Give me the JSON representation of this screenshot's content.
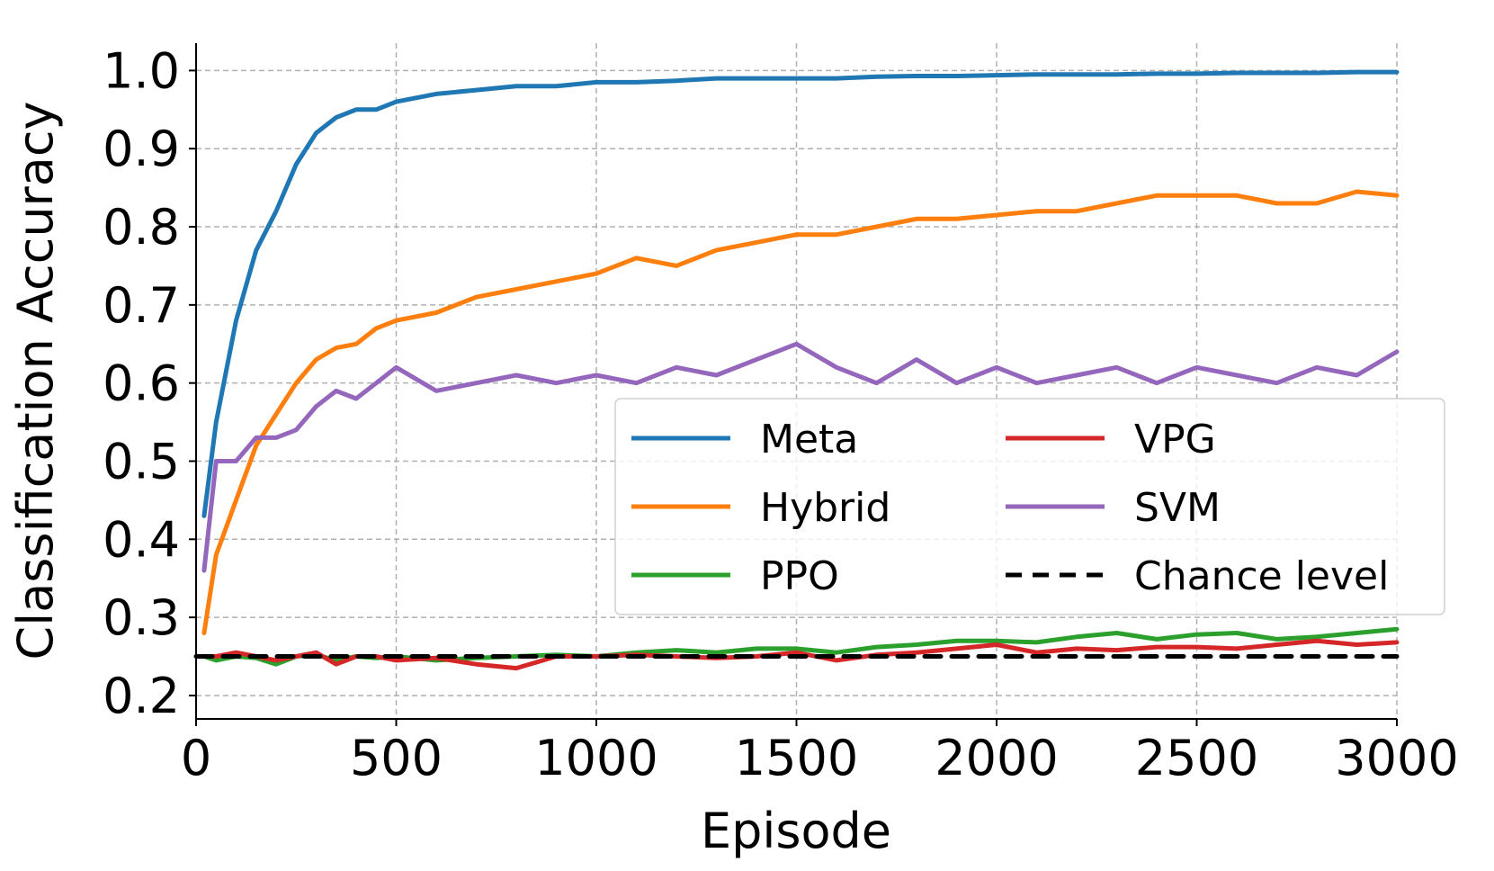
{
  "chart_data": {
    "type": "line",
    "title": "",
    "xlabel": "Episode",
    "ylabel": "Classification Accuracy",
    "xlim": [
      0,
      3000
    ],
    "ylim": [
      0.17,
      1.035
    ],
    "xticks": [
      0,
      500,
      1000,
      1500,
      2000,
      2500,
      3000
    ],
    "yticks": [
      0.2,
      0.3,
      0.4,
      0.5,
      0.6,
      0.7,
      0.8,
      0.9,
      1.0
    ],
    "xtick_labels": [
      "0",
      "500",
      "1000",
      "1500",
      "2000",
      "2500",
      "3000"
    ],
    "ytick_labels": [
      "0.2",
      "0.3",
      "0.4",
      "0.5",
      "0.6",
      "0.7",
      "0.8",
      "0.9",
      "1.0"
    ],
    "grid": true,
    "legend_position": "center-right",
    "x": [
      20,
      50,
      100,
      150,
      200,
      250,
      300,
      350,
      400,
      450,
      500,
      600,
      700,
      800,
      900,
      1000,
      1100,
      1200,
      1300,
      1400,
      1500,
      1600,
      1700,
      1800,
      1900,
      2000,
      2100,
      2200,
      2300,
      2400,
      2500,
      2600,
      2700,
      2800,
      2900,
      3000
    ],
    "series": [
      {
        "name": "Meta",
        "color": "#1f77b4",
        "dashed": false,
        "values": [
          0.43,
          0.55,
          0.68,
          0.77,
          0.82,
          0.88,
          0.92,
          0.94,
          0.95,
          0.95,
          0.96,
          0.97,
          0.975,
          0.98,
          0.98,
          0.985,
          0.985,
          0.987,
          0.99,
          0.99,
          0.99,
          0.99,
          0.992,
          0.993,
          0.993,
          0.994,
          0.995,
          0.995,
          0.995,
          0.996,
          0.996,
          0.997,
          0.997,
          0.997,
          0.998,
          0.998
        ]
      },
      {
        "name": "Hybrid",
        "color": "#ff7f0e",
        "dashed": false,
        "values": [
          0.28,
          0.38,
          0.45,
          0.52,
          0.56,
          0.6,
          0.63,
          0.645,
          0.65,
          0.67,
          0.68,
          0.69,
          0.71,
          0.72,
          0.73,
          0.74,
          0.76,
          0.75,
          0.77,
          0.78,
          0.79,
          0.79,
          0.8,
          0.81,
          0.81,
          0.815,
          0.82,
          0.82,
          0.83,
          0.84,
          0.84,
          0.84,
          0.83,
          0.83,
          0.845,
          0.84
        ]
      },
      {
        "name": "PPO",
        "color": "#2ca02c",
        "dashed": false,
        "values": [
          0.25,
          0.245,
          0.25,
          0.248,
          0.24,
          0.25,
          0.252,
          0.245,
          0.25,
          0.248,
          0.25,
          0.245,
          0.248,
          0.25,
          0.252,
          0.25,
          0.255,
          0.258,
          0.255,
          0.26,
          0.26,
          0.255,
          0.262,
          0.265,
          0.27,
          0.27,
          0.268,
          0.275,
          0.28,
          0.272,
          0.278,
          0.28,
          0.272,
          0.275,
          0.28,
          0.285
        ]
      },
      {
        "name": "VPG",
        "color": "#d62728",
        "dashed": false,
        "values": [
          0.25,
          0.25,
          0.255,
          0.25,
          0.245,
          0.25,
          0.255,
          0.24,
          0.25,
          0.25,
          0.245,
          0.248,
          0.24,
          0.235,
          0.25,
          0.25,
          0.252,
          0.25,
          0.248,
          0.25,
          0.255,
          0.245,
          0.252,
          0.255,
          0.26,
          0.265,
          0.255,
          0.26,
          0.258,
          0.262,
          0.262,
          0.26,
          0.265,
          0.27,
          0.265,
          0.268
        ]
      },
      {
        "name": "SVM",
        "color": "#9467bd",
        "dashed": false,
        "values": [
          0.36,
          0.5,
          0.5,
          0.53,
          0.53,
          0.54,
          0.57,
          0.59,
          0.58,
          0.6,
          0.62,
          0.59,
          0.6,
          0.61,
          0.6,
          0.61,
          0.6,
          0.62,
          0.61,
          0.63,
          0.65,
          0.62,
          0.6,
          0.63,
          0.6,
          0.62,
          0.6,
          0.61,
          0.62,
          0.6,
          0.62,
          0.61,
          0.6,
          0.62,
          0.61,
          0.64
        ]
      },
      {
        "name": "Chance level",
        "color": "#000000",
        "dashed": true,
        "values": [
          0.25,
          0.25,
          0.25,
          0.25,
          0.25,
          0.25,
          0.25,
          0.25,
          0.25,
          0.25,
          0.25,
          0.25,
          0.25,
          0.25,
          0.25,
          0.25,
          0.25,
          0.25,
          0.25,
          0.25,
          0.25,
          0.25,
          0.25,
          0.25,
          0.25,
          0.25,
          0.25,
          0.25,
          0.25,
          0.25,
          0.25,
          0.25,
          0.25,
          0.25,
          0.25,
          0.25
        ]
      }
    ]
  }
}
